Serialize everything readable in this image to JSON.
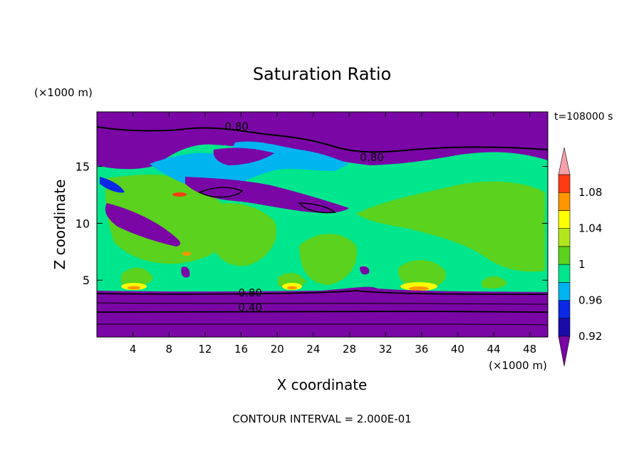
{
  "chart_data": {
    "type": "contour",
    "title": "Saturation Ratio",
    "xlabel": "X coordinate",
    "ylabel": "Z coordinate",
    "x_unit": "(×1000 m)",
    "y_unit": "(×1000 m)",
    "time_label": "t=108000 s",
    "footer": "CONTOUR INTERVAL = 2.000E-01",
    "xlim": [
      0,
      50
    ],
    "ylim": [
      0,
      19.8
    ],
    "x_ticks": [
      4,
      8,
      12,
      16,
      20,
      24,
      28,
      32,
      36,
      40,
      44,
      48
    ],
    "y_ticks": [
      5,
      10,
      15
    ],
    "colorbar": {
      "levels": [
        0.9,
        0.92,
        0.94,
        0.96,
        0.98,
        1.0,
        1.02,
        1.04,
        1.06,
        1.08,
        1.1
      ],
      "tick_labels": [
        "0.92",
        "0.96",
        "1",
        "1.04",
        "1.08"
      ],
      "colors": [
        "#7a06a6",
        "#1a0aa8",
        "#0a28e6",
        "#00b4f0",
        "#00e68c",
        "#5ad21e",
        "#b4e61e",
        "#ffff00",
        "#ff9600",
        "#ff3c14",
        "#f5a0aa"
      ]
    },
    "contour_labels": [
      {
        "text": "0.80",
        "x": 15.5,
        "z": 18.5
      },
      {
        "text": "0.80",
        "x": 30.5,
        "z": 15.8
      },
      {
        "text": "0.80",
        "x": 17.0,
        "z": 3.9
      },
      {
        "text": "0.40",
        "x": 17.0,
        "z": 2.6
      }
    ]
  }
}
